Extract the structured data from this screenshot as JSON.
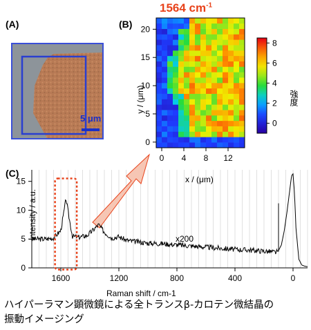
{
  "panels": {
    "a": {
      "label": "(A)",
      "scale_bar": "5 μm",
      "colors": {
        "frame": "#3a4fd8",
        "crystal": "#b87a55",
        "background": "#8d949a"
      }
    },
    "b": {
      "label": "(B)",
      "title_main": "1564 cm",
      "title_sup": "-1",
      "xlabel": "x / (μm)",
      "ylabel": "y / (μm)",
      "colorbar_label": "強度",
      "colorbar_ticks": [
        "8",
        "6",
        "4",
        "2",
        "0"
      ]
    },
    "c": {
      "label": "(C)",
      "annotation": "x200",
      "highlight_color": "#e8421a"
    }
  },
  "chart_data": [
    {
      "type": "heatmap",
      "title": "1564 cm-1",
      "xlabel": "x / (μm)",
      "ylabel": "y / (μm)",
      "x_ticks": [
        "0",
        "4",
        "8",
        "12"
      ],
      "y_ticks": [
        "0",
        "5",
        "10",
        "15",
        "20"
      ],
      "xlim": [
        -1,
        15
      ],
      "ylim": [
        -1,
        22
      ],
      "color_scale": {
        "min": -1,
        "max": 8.5,
        "ticks": [
          0,
          2,
          4,
          6,
          8
        ],
        "colormap": "rainbow"
      },
      "description_of_values": "intensity low (~0) for x < 3 and along bottom rows y < 1, high (~5-7) in region x 4-14, y 1-22"
    },
    {
      "type": "line",
      "xlabel": "Raman shift / cm-1",
      "ylabel": "intensity / a.u.",
      "x_ticks": [
        "1600",
        "1200",
        "800",
        "400",
        "0"
      ],
      "y_ticks": [
        "0",
        "5",
        "10",
        "15"
      ],
      "xlim": [
        1800,
        -100
      ],
      "ylim": [
        0,
        17
      ],
      "x_reversed": true,
      "annotations": [
        "x200"
      ],
      "series": [
        {
          "x": [
            1800,
            1700,
            1650,
            1600,
            1580,
            1564,
            1545,
            1520,
            1480,
            1420,
            1380,
            1340,
            1300,
            1250,
            1200,
            1150,
            1100,
            1000,
            900,
            800,
            700,
            600,
            500,
            400,
            300,
            200,
            150,
            120,
            100,
            80,
            60,
            40,
            20,
            10,
            0,
            -10,
            -20,
            -40,
            -60,
            -80,
            -100
          ],
          "y": [
            5.0,
            5.0,
            5.2,
            6.5,
            9.5,
            12.0,
            9.0,
            5.5,
            5.3,
            5.6,
            6.5,
            7.5,
            6.2,
            5.2,
            5.4,
            4.8,
            4.6,
            4.3,
            4.2,
            4.0,
            3.8,
            3.6,
            3.4,
            3.2,
            3.1,
            2.9,
            2.8,
            2.7,
            3.0,
            4.0,
            6.5,
            10.0,
            14.0,
            16.0,
            16.3,
            13.0,
            7.0,
            1.5,
            0.5,
            0.3,
            0.2
          ]
        }
      ]
    }
  ],
  "caption": {
    "line1": "ハイパーラマン顕微鏡による全トランスβ-カロテン微結晶の",
    "line2": "振動イメージング"
  }
}
